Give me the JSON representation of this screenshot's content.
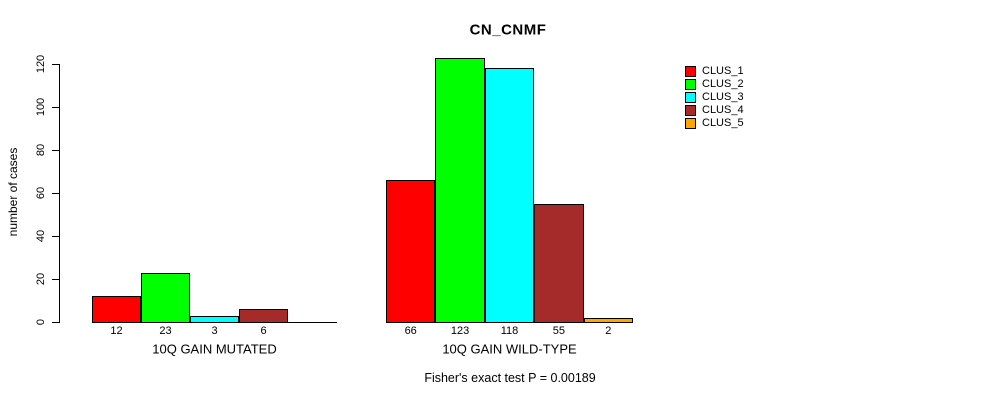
{
  "chart_data": {
    "type": "bar",
    "title": "CN_CNMF",
    "ylabel": "number of cases",
    "xlabel": "",
    "ylim": [
      0,
      120
    ],
    "yticks": [
      0,
      20,
      40,
      60,
      80,
      100,
      120
    ],
    "grid": false,
    "legend_position": "right",
    "series": [
      {
        "name": "CLUS_1",
        "color": "#FF0000"
      },
      {
        "name": "CLUS_2",
        "color": "#00FF00"
      },
      {
        "name": "CLUS_3",
        "color": "#00FFFF"
      },
      {
        "name": "CLUS_4",
        "color": "#A52A2A"
      },
      {
        "name": "CLUS_5",
        "color": "#FFA500"
      }
    ],
    "groups": [
      {
        "label": "10Q GAIN MUTATED",
        "values": [
          12,
          23,
          3,
          6,
          0
        ],
        "bar_labels": [
          "12",
          "23",
          "3",
          "6",
          ""
        ]
      },
      {
        "label": "10Q GAIN WILD-TYPE",
        "values": [
          66,
          123,
          118,
          55,
          2
        ],
        "bar_labels": [
          "66",
          "123",
          "118",
          "55",
          "2"
        ]
      }
    ],
    "footer": "Fisher's exact test P = 0.00189"
  }
}
